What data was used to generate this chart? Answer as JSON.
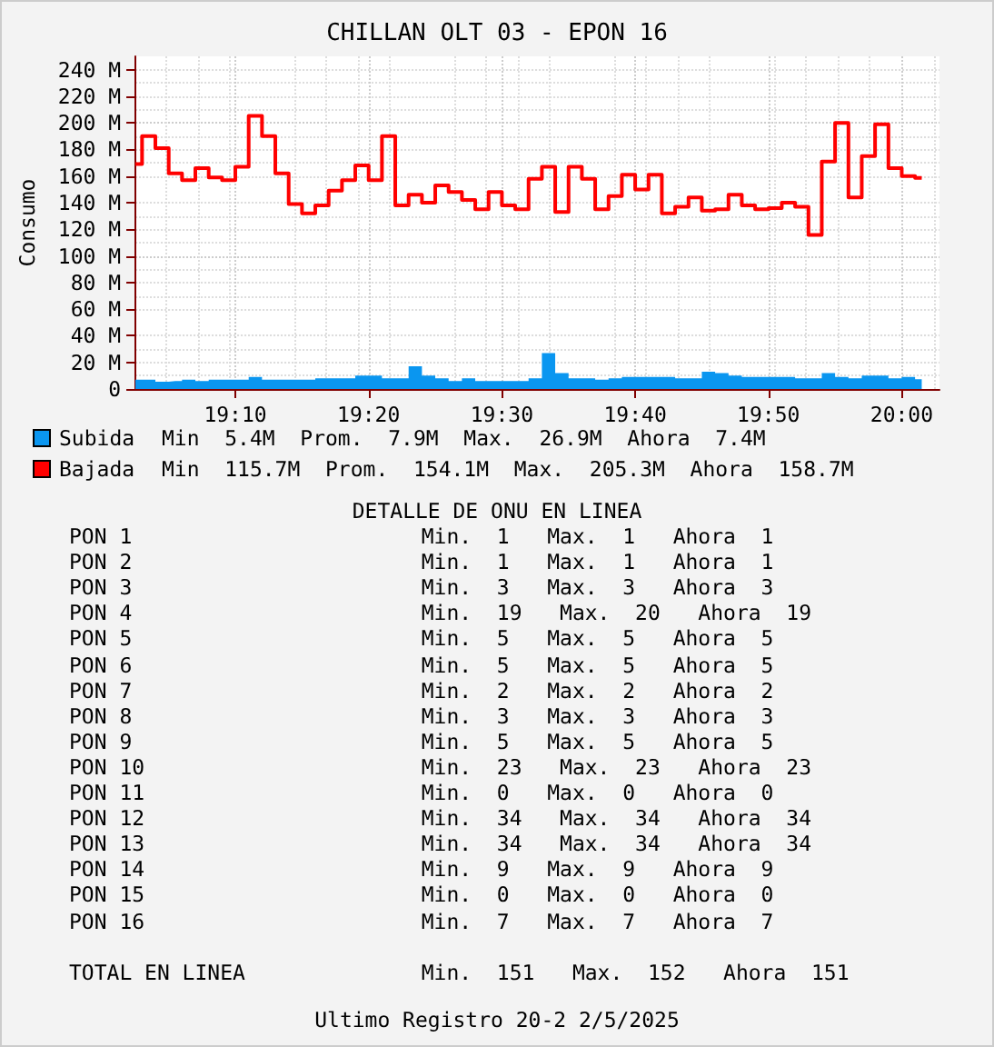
{
  "chart_data": {
    "type": "step",
    "title": "CHILLAN OLT 03 - EPON 16",
    "ylabel": "Consumo",
    "x": [
      19.0417,
      19.0583,
      19.075,
      19.0917,
      19.1083,
      19.125,
      19.1417,
      19.1583,
      19.175,
      19.1917,
      19.2083,
      19.225,
      19.2417,
      19.2583,
      19.275,
      19.2917,
      19.3083,
      19.325,
      19.3417,
      19.3583,
      19.375,
      19.3917,
      19.4083,
      19.425,
      19.4417,
      19.4583,
      19.475,
      19.4917,
      19.5083,
      19.525,
      19.5417,
      19.5583,
      19.575,
      19.5917,
      19.6083,
      19.625,
      19.6417,
      19.6583,
      19.675,
      19.6917,
      19.7083,
      19.725,
      19.7417,
      19.7583,
      19.775,
      19.7917,
      19.8083,
      19.825,
      19.8417,
      19.8583,
      19.875,
      19.8917,
      19.9083,
      19.925,
      19.9417,
      19.9583,
      19.975,
      19.9917,
      20.0083,
      20.025
    ],
    "series": [
      {
        "name": "Subida",
        "type": "area",
        "color": "#0a96f0",
        "values": [
          7,
          7,
          5.4,
          6,
          7,
          6,
          7,
          7,
          7,
          9,
          7,
          7,
          7,
          7,
          8,
          8,
          8,
          10,
          10,
          8,
          8,
          17,
          10,
          8,
          6,
          8,
          6,
          6,
          6,
          6,
          8,
          26.9,
          12,
          8,
          8,
          7,
          8,
          9,
          9,
          9,
          9,
          8,
          8,
          13,
          12,
          10,
          9,
          9,
          9,
          9,
          8,
          8,
          12,
          9,
          8,
          10,
          10,
          8,
          9,
          7.4
        ]
      },
      {
        "name": "Bajada",
        "type": "step",
        "color": "#ff0000",
        "values": [
          169,
          190,
          181,
          162,
          157,
          166,
          159,
          157,
          167,
          205.3,
          190,
          162,
          139,
          132,
          138,
          149,
          157,
          168,
          157,
          190,
          138,
          146,
          140,
          153,
          148,
          142,
          135,
          148,
          138,
          135,
          158,
          167,
          133,
          167,
          158,
          135,
          145,
          161,
          150,
          161,
          132,
          137,
          144,
          134,
          135,
          146,
          138,
          135,
          136,
          140,
          137,
          115.7,
          171,
          200,
          144,
          175,
          199,
          166,
          160,
          158.7
        ]
      }
    ],
    "xlim": [
      19.0417,
      20.0472
    ],
    "xticks": [
      {
        "value": 19.1667,
        "label": "19:10"
      },
      {
        "value": 19.3333,
        "label": "19:20"
      },
      {
        "value": 19.5,
        "label": "19:30"
      },
      {
        "value": 19.6667,
        "label": "19:40"
      },
      {
        "value": 19.8333,
        "label": "19:50"
      },
      {
        "value": 20,
        "label": "20:00"
      }
    ],
    "ylim": [
      0,
      250
    ],
    "yticks": [
      0,
      {
        "value": 20,
        "label": "20 M"
      },
      {
        "value": 40,
        "label": "40 M"
      },
      {
        "value": 60,
        "label": "60 M"
      },
      {
        "value": 80,
        "label": "80 M"
      },
      {
        "value": 100,
        "label": "100 M"
      },
      {
        "value": 120,
        "label": "120 M"
      },
      {
        "value": 140,
        "label": "140 M"
      },
      {
        "value": 160,
        "label": "160 M"
      },
      {
        "value": 180,
        "label": "180 M"
      },
      {
        "value": 200,
        "label": "200 M"
      },
      {
        "value": 220,
        "label": "220 M"
      },
      {
        "value": 240,
        "label": "240 M"
      }
    ],
    "grid": true,
    "legend": "bottom",
    "annotations": [
      "Min  5.4M  Prom.  7.9M  Max.  26.9M  Ahora  7.4M",
      "Min  115.7M  Prom.  154.1M  Max.  205.3M  Ahora  158.7M",
      "DETALLE DE ONU EN LINEA",
      "PON 1                       Min.  1   Max.  1   Ahora  1",
      "PON 2                       Min.  1   Max.  1   Ahora  1",
      "PON 3                       Min.  3   Max.  3   Ahora  3",
      "PON 4                       Min.  19   Max.  20   Ahora  19",
      "PON 5                       Min.  5   Max.  5   Ahora  5",
      "PON 6                       Min.  5   Max.  5   Ahora  5",
      "PON 7                       Min.  2   Max.  2   Ahora  2",
      "PON 8                       Min.  3   Max.  3   Ahora  3",
      "PON 9                       Min.  5   Max.  5   Ahora  5",
      "PON 10                      Min.  23   Max.  23   Ahora  23",
      "PON 11                      Min.  0   Max.  0   Ahora  0",
      "PON 12                      Min.  34   Max.  34   Ahora  34",
      "PON 13                      Min.  34   Max.  34   Ahora  34",
      "PON 14                      Min.  9   Max.  9   Ahora  9",
      "PON 15                      Min.  0   Max.  0   Ahora  0",
      "PON 16                      Min.  7   Max.  7   Ahora  7",
      "TOTAL EN LINEA              Min.  151   Max.  152   Ahora  151",
      "Ultimo Registro 20-2 2/5/2025"
    ]
  }
}
